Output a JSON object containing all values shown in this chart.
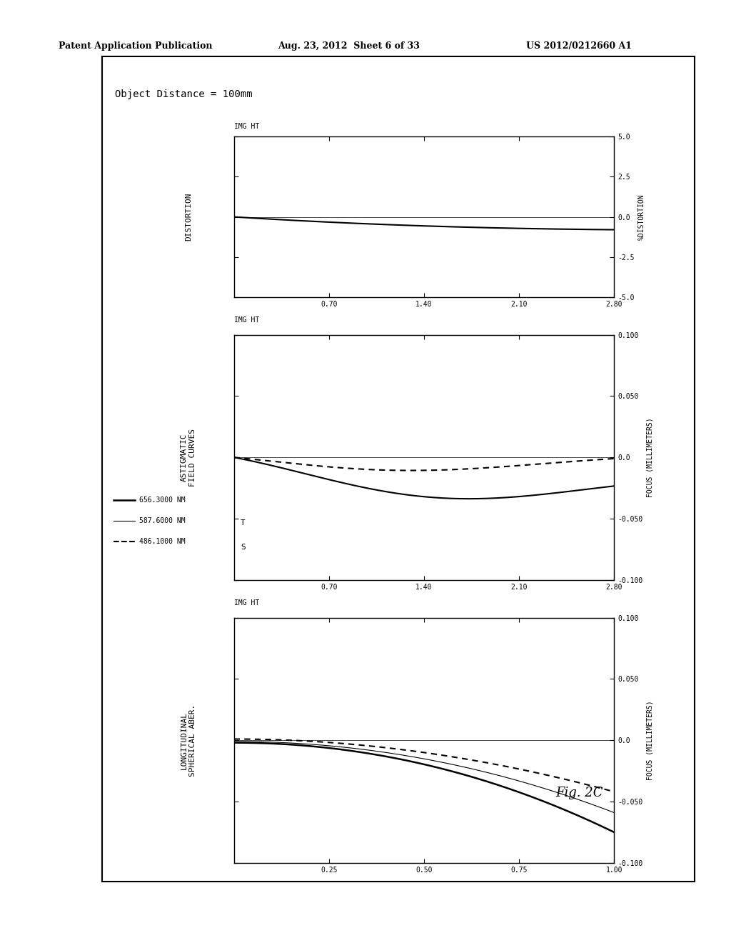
{
  "header_left": "Patent Application Publication",
  "header_center": "Aug. 23, 2012  Sheet 6 of 33",
  "header_right": "US 2012/0212660 A1",
  "figure_label": "Fig. 2C",
  "object_distance": "Object Distance = 100mm",
  "legend_labels": [
    "656.3000 NM",
    "587.6000 NM",
    "486.1000 NM"
  ],
  "panel1_title_line1": "LONGITUDINAL",
  "panel1_title_line2": "SPHERICAL ABER.",
  "panel1_ylabel": "FOCUS (MILLIMETERS)",
  "panel1_xlim": [
    0.0,
    1.0
  ],
  "panel1_xticks": [
    0.25,
    0.5,
    0.75,
    1.0
  ],
  "panel1_ylim": [
    -0.1,
    0.1
  ],
  "panel1_yticks": [
    -0.1,
    -0.05,
    0.0,
    0.05,
    0.1
  ],
  "panel2_title_line1": "ASTIGMATIC",
  "panel2_title_line2": "FIELD CURVES",
  "panel2_ylabel": "FOCUS (MILLIMETERS)",
  "panel2_xlim": [
    0.0,
    2.8
  ],
  "panel2_xticks": [
    0.7,
    1.4,
    2.1,
    2.8
  ],
  "panel2_ylim": [
    -0.1,
    0.1
  ],
  "panel2_yticks": [
    -0.1,
    -0.05,
    0.0,
    0.05,
    0.1
  ],
  "panel3_title": "DISTORTION",
  "panel3_ylabel": "%DISTORTION",
  "panel3_xlim": [
    0.0,
    2.8
  ],
  "panel3_xticks": [
    0.7,
    1.4,
    2.1,
    2.8
  ],
  "panel3_ylim": [
    -5.0,
    5.0
  ],
  "panel3_yticks": [
    -5.0,
    -2.5,
    0.0,
    2.5,
    5.0
  ],
  "img_ht_label": "IMG HT"
}
